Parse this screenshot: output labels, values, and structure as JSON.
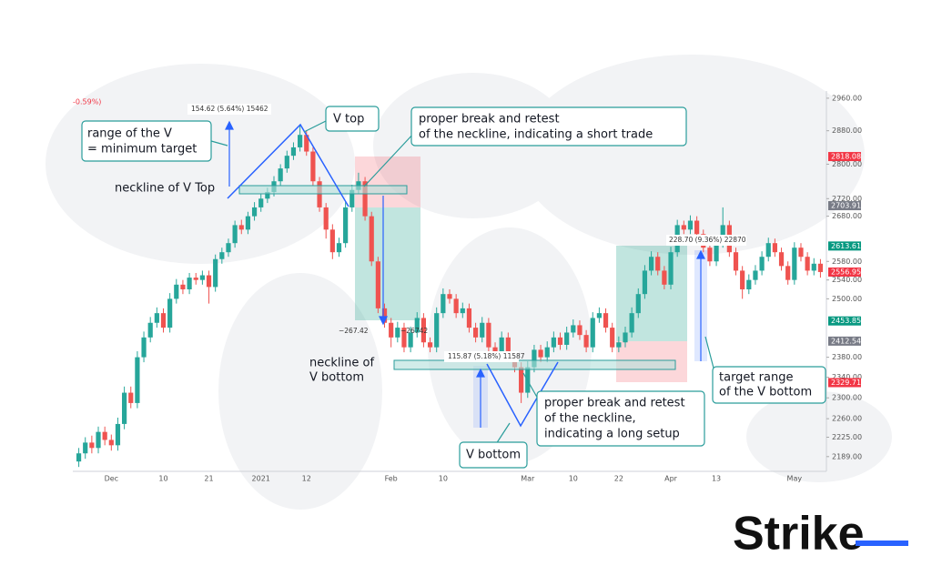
{
  "chart_data": {
    "type": "candlestick",
    "up_color": "#26a69a",
    "down_color": "#ef5350",
    "log_scale": true,
    "ylim": [
      2162,
      2978
    ],
    "yticks": [
      {
        "value": 2960,
        "label": "2960.00"
      },
      {
        "value": 2880,
        "label": "2880.00"
      },
      {
        "value": 2800,
        "label": "2800.00"
      },
      {
        "value": 2720,
        "label": "2720.00"
      },
      {
        "value": 2680,
        "label": "2680.00"
      },
      {
        "value": 2580,
        "label": "2580.00"
      },
      {
        "value": 2540,
        "label": "2540.00"
      },
      {
        "value": 2500,
        "label": "2500.00"
      },
      {
        "value": 2380,
        "label": "2380.00"
      },
      {
        "value": 2340,
        "label": "2340.00"
      },
      {
        "value": 2300,
        "label": "2300.00"
      },
      {
        "value": 2260,
        "label": "2260.00"
      },
      {
        "value": 2225,
        "label": "2225.00"
      },
      {
        "value": 2189,
        "label": "2189.00"
      }
    ],
    "price_tags": [
      {
        "value": 2818.08,
        "color": "#f23645"
      },
      {
        "value": 2703.91,
        "color": "#787b86"
      },
      {
        "value": 2613.61,
        "color": "#089981"
      },
      {
        "value": 2556.95,
        "color": "#f23645"
      },
      {
        "value": 2453.85,
        "color": "#089981"
      },
      {
        "value": 2412.54,
        "color": "#787b86"
      },
      {
        "value": 2329.71,
        "color": "#f23645"
      }
    ],
    "categories": [
      null,
      null,
      null,
      null,
      null,
      "Dec",
      null,
      null,
      null,
      null,
      null,
      null,
      null,
      "10",
      null,
      null,
      null,
      null,
      null,
      null,
      "21",
      null,
      null,
      null,
      null,
      null,
      null,
      null,
      "2021",
      null,
      null,
      null,
      null,
      null,
      null,
      "12",
      null,
      null,
      null,
      null,
      null,
      null,
      null,
      null,
      null,
      null,
      null,
      null,
      "Feb",
      null,
      null,
      null,
      null,
      null,
      null,
      null,
      "10",
      null,
      null,
      null,
      null,
      null,
      null,
      null,
      null,
      null,
      null,
      null,
      null,
      "Mar",
      null,
      null,
      null,
      null,
      null,
      null,
      "10",
      null,
      null,
      null,
      null,
      null,
      null,
      "22",
      null,
      null,
      null,
      null,
      null,
      null,
      null,
      "Apr",
      null,
      null,
      null,
      null,
      null,
      null,
      "13",
      null,
      null,
      null,
      null,
      null,
      null,
      null,
      null,
      null,
      null,
      null,
      "May",
      null,
      null,
      null,
      null
    ],
    "candles": [
      [
        2180,
        2205,
        2170,
        2195
      ],
      [
        2195,
        2225,
        2185,
        2215
      ],
      [
        2215,
        2228,
        2195,
        2205
      ],
      [
        2205,
        2245,
        2195,
        2235
      ],
      [
        2235,
        2245,
        2210,
        2220
      ],
      [
        2220,
        2230,
        2200,
        2210
      ],
      [
        2210,
        2262,
        2200,
        2250
      ],
      [
        2250,
        2322,
        2240,
        2310
      ],
      [
        2310,
        2322,
        2280,
        2290
      ],
      [
        2290,
        2392,
        2280,
        2380
      ],
      [
        2380,
        2432,
        2370,
        2420
      ],
      [
        2420,
        2462,
        2410,
        2450
      ],
      [
        2450,
        2482,
        2440,
        2470
      ],
      [
        2470,
        2480,
        2430,
        2440
      ],
      [
        2440,
        2512,
        2430,
        2500
      ],
      [
        2500,
        2542,
        2490,
        2530
      ],
      [
        2530,
        2540,
        2510,
        2520
      ],
      [
        2520,
        2555,
        2510,
        2545
      ],
      [
        2545,
        2555,
        2530,
        2540
      ],
      [
        2540,
        2560,
        2530,
        2550
      ],
      [
        2550,
        2560,
        2490,
        2525
      ],
      [
        2525,
        2595,
        2515,
        2585
      ],
      [
        2585,
        2610,
        2575,
        2600
      ],
      [
        2600,
        2630,
        2590,
        2620
      ],
      [
        2620,
        2670,
        2610,
        2660
      ],
      [
        2660,
        2672,
        2640,
        2650
      ],
      [
        2650,
        2690,
        2640,
        2680
      ],
      [
        2680,
        2712,
        2670,
        2700
      ],
      [
        2700,
        2732,
        2690,
        2720
      ],
      [
        2720,
        2745,
        2710,
        2735
      ],
      [
        2735,
        2772,
        2725,
        2760
      ],
      [
        2760,
        2800,
        2750,
        2790
      ],
      [
        2790,
        2832,
        2780,
        2820
      ],
      [
        2820,
        2852,
        2810,
        2840
      ],
      [
        2840,
        2895,
        2830,
        2870
      ],
      [
        2870,
        2880,
        2820,
        2830
      ],
      [
        2830,
        2840,
        2750,
        2760
      ],
      [
        2760,
        2770,
        2690,
        2700
      ],
      [
        2700,
        2710,
        2630,
        2650
      ],
      [
        2650,
        2662,
        2585,
        2600
      ],
      [
        2600,
        2632,
        2590,
        2620
      ],
      [
        2620,
        2712,
        2610,
        2700
      ],
      [
        2700,
        2752,
        2690,
        2740
      ],
      [
        2740,
        2780,
        2730,
        2760
      ],
      [
        2760,
        2770,
        2670,
        2680
      ],
      [
        2680,
        2690,
        2570,
        2580
      ],
      [
        2580,
        2590,
        2470,
        2480
      ],
      [
        2480,
        2490,
        2440,
        2450
      ],
      [
        2450,
        2460,
        2400,
        2420
      ],
      [
        2420,
        2452,
        2410,
        2440
      ],
      [
        2440,
        2450,
        2390,
        2400
      ],
      [
        2400,
        2442,
        2390,
        2430
      ],
      [
        2430,
        2472,
        2420,
        2460
      ],
      [
        2460,
        2470,
        2400,
        2410
      ],
      [
        2410,
        2420,
        2390,
        2400
      ],
      [
        2400,
        2482,
        2390,
        2470
      ],
      [
        2470,
        2522,
        2460,
        2510
      ],
      [
        2510,
        2520,
        2490,
        2500
      ],
      [
        2500,
        2510,
        2460,
        2470
      ],
      [
        2470,
        2492,
        2460,
        2480
      ],
      [
        2480,
        2490,
        2430,
        2440
      ],
      [
        2440,
        2450,
        2410,
        2420
      ],
      [
        2420,
        2462,
        2410,
        2450
      ],
      [
        2450,
        2460,
        2390,
        2400
      ],
      [
        2400,
        2410,
        2380,
        2390
      ],
      [
        2390,
        2432,
        2380,
        2420
      ],
      [
        2420,
        2430,
        2370,
        2380
      ],
      [
        2380,
        2390,
        2350,
        2360
      ],
      [
        2360,
        2370,
        2290,
        2310
      ],
      [
        2310,
        2372,
        2300,
        2360
      ],
      [
        2360,
        2405,
        2350,
        2395
      ],
      [
        2395,
        2405,
        2370,
        2380
      ],
      [
        2380,
        2412,
        2370,
        2400
      ],
      [
        2400,
        2432,
        2390,
        2420
      ],
      [
        2420,
        2430,
        2395,
        2405
      ],
      [
        2405,
        2442,
        2395,
        2430
      ],
      [
        2430,
        2457,
        2420,
        2445
      ],
      [
        2445,
        2455,
        2415,
        2425
      ],
      [
        2425,
        2435,
        2390,
        2400
      ],
      [
        2400,
        2472,
        2390,
        2460
      ],
      [
        2460,
        2482,
        2450,
        2470
      ],
      [
        2470,
        2480,
        2430,
        2440
      ],
      [
        2440,
        2450,
        2390,
        2400
      ],
      [
        2400,
        2422,
        2390,
        2410
      ],
      [
        2410,
        2442,
        2400,
        2430
      ],
      [
        2430,
        2482,
        2420,
        2470
      ],
      [
        2470,
        2522,
        2460,
        2510
      ],
      [
        2510,
        2572,
        2500,
        2560
      ],
      [
        2560,
        2602,
        2550,
        2590
      ],
      [
        2590,
        2600,
        2550,
        2560
      ],
      [
        2560,
        2570,
        2520,
        2530
      ],
      [
        2530,
        2612,
        2520,
        2600
      ],
      [
        2600,
        2672,
        2590,
        2660
      ],
      [
        2660,
        2670,
        2640,
        2650
      ],
      [
        2650,
        2682,
        2640,
        2670
      ],
      [
        2670,
        2680,
        2630,
        2640
      ],
      [
        2640,
        2650,
        2600,
        2610
      ],
      [
        2610,
        2620,
        2570,
        2580
      ],
      [
        2580,
        2632,
        2570,
        2620
      ],
      [
        2620,
        2700,
        2610,
        2660
      ],
      [
        2660,
        2670,
        2590,
        2600
      ],
      [
        2600,
        2610,
        2550,
        2560
      ],
      [
        2560,
        2570,
        2500,
        2520
      ],
      [
        2520,
        2552,
        2510,
        2540
      ],
      [
        2540,
        2572,
        2530,
        2560
      ],
      [
        2560,
        2602,
        2550,
        2590
      ],
      [
        2590,
        2632,
        2580,
        2620
      ],
      [
        2620,
        2630,
        2590,
        2600
      ],
      [
        2600,
        2610,
        2560,
        2570
      ],
      [
        2570,
        2580,
        2530,
        2540
      ],
      [
        2540,
        2622,
        2530,
        2610
      ],
      [
        2610,
        2620,
        2580,
        2590
      ],
      [
        2590,
        2600,
        2550,
        2560
      ],
      [
        2560,
        2587,
        2550,
        2575
      ],
      [
        2575,
        2585,
        2545,
        2557
      ]
    ],
    "header_fragment": "-0.59%)",
    "measurements": {
      "top": "154.62 (5.64%) 15462",
      "drop_left": "−267.42",
      "drop_right": "−26742",
      "bottom": "115.87 (5.18%) 11587",
      "rise": "228.70 (9.36%) 22870"
    },
    "annotations": {
      "range": [
        "range of the V",
        "= minimum target"
      ],
      "v_top": "V top",
      "neckline_top": "neckline of V Top",
      "short_trade": [
        "proper break and retest",
        "of the neckline, indicating a short trade"
      ],
      "neckline_bottom": [
        "neckline of",
        "V bottom"
      ],
      "v_bottom": "V bottom",
      "long_setup": [
        "proper break and retest",
        "of the neckline,",
        "indicating a long setup"
      ],
      "target": [
        "target range",
        "of the V bottom"
      ]
    },
    "logo": "Strike"
  }
}
